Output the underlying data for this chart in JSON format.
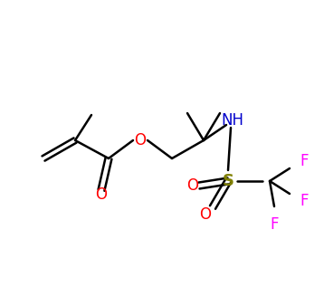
{
  "background_color": "#ffffff",
  "bond_color": "#000000",
  "bond_width": 1.8,
  "atom_colors": {
    "O": "#ff0000",
    "N": "#0000cc",
    "S": "#808000",
    "F": "#ff00ff",
    "C": "#000000"
  },
  "font_size": 11,
  "font_size_small": 10
}
